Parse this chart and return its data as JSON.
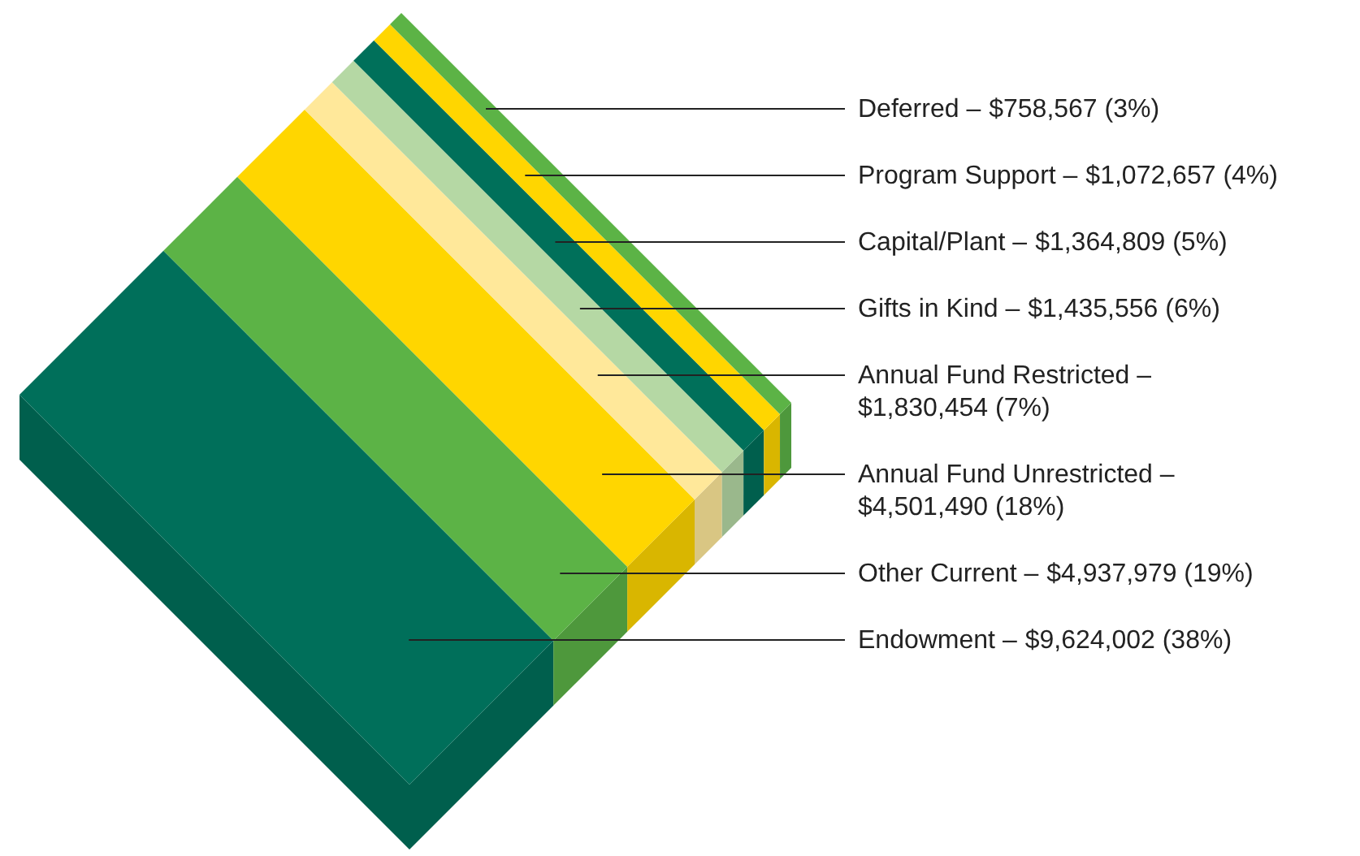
{
  "chart_data": {
    "type": "other",
    "categories": [
      "Deferred –",
      "Program Support –",
      "Capital/Plant –",
      "Gifts in Kind –",
      "Annual Fund Restricted –",
      "Annual Fund Unrestricted –",
      "Other Current –",
      "Endowment –"
    ],
    "values": [
      758567,
      1072657,
      1364809,
      1435556,
      1830454,
      4501490,
      4937979,
      9624002
    ],
    "value_labels": [
      "$758,567 (3%)",
      "$1,072,657 (4%)",
      "$1,364,809 (5%)",
      "$1,435,556 (6%)",
      "$1,830,454 (7%)",
      "$4,501,490 (18%)",
      "$4,937,979 (19%)",
      "$9,624,002 (38%)"
    ],
    "colors": [
      "#5cb346",
      "#ffd600",
      "#00705a",
      "#b5d8a4",
      "#ffe89a",
      "#ffd600",
      "#5cb346",
      "#006f5a"
    ]
  }
}
